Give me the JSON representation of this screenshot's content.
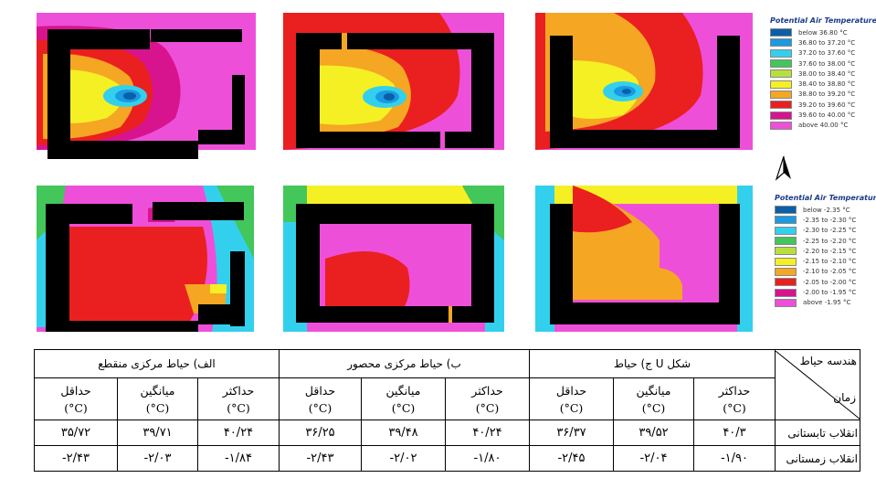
{
  "maps": {
    "summer": [
      {
        "name": "a"
      },
      {
        "name": "b"
      },
      {
        "name": "c"
      }
    ],
    "winter": [
      {
        "name": "a"
      },
      {
        "name": "b"
      },
      {
        "name": "c"
      }
    ]
  },
  "legend_summer": {
    "title": "Potential Air Temperature",
    "items": [
      {
        "label": "below 36.80 °C",
        "color": "#0a5fa8"
      },
      {
        "label": "36.80 to 37.20 °C",
        "color": "#1a9ae0"
      },
      {
        "label": "37.20 to 37.60 °C",
        "color": "#33d0ee"
      },
      {
        "label": "37.60 to 38.00 °C",
        "color": "#43c65a"
      },
      {
        "label": "38.00 to 38.40 °C",
        "color": "#b8e03a"
      },
      {
        "label": "38.40 to 38.80 °C",
        "color": "#f5f024"
      },
      {
        "label": "38.80 to 39.20 °C",
        "color": "#f5a623"
      },
      {
        "label": "39.20 to 39.60 °C",
        "color": "#ea1f1f"
      },
      {
        "label": "39.60 to 40.00 °C",
        "color": "#d8138e"
      },
      {
        "label": "above 40.00 °C",
        "color": "#ee4fd9"
      }
    ]
  },
  "legend_winter": {
    "title": "Potential Air Temperature",
    "items": [
      {
        "label": "below -2.35 °C",
        "color": "#0a5fa8"
      },
      {
        "label": "-2.35 to -2.30 °C",
        "color": "#1a9ae0"
      },
      {
        "label": "-2.30 to -2.25 °C",
        "color": "#33d0ee"
      },
      {
        "label": "-2.25 to -2.20 °C",
        "color": "#43c65a"
      },
      {
        "label": "-2.20 to -2.15 °C",
        "color": "#b8e03a"
      },
      {
        "label": "-2.15 to -2.10 °C",
        "color": "#f5f024"
      },
      {
        "label": "-2.10 to -2.05 °C",
        "color": "#f5a623"
      },
      {
        "label": "-2.05 to -2.00 °C",
        "color": "#ea1f1f"
      },
      {
        "label": "-2.00 to -1.95 °C",
        "color": "#d8138e"
      },
      {
        "label": "above -1.95 °C",
        "color": "#ee4fd9"
      }
    ]
  },
  "table": {
    "header_top": "هندسه حیاط",
    "header_bottom": "زمان",
    "groups": [
      {
        "label": "ج) حیاط U شکل"
      },
      {
        "label": "ب) حیاط مرکزی محصور"
      },
      {
        "label": "الف) حیاط مرکزی منقطع"
      }
    ],
    "sub_labels": [
      "حداکثر",
      "میانگین",
      "حداقل"
    ],
    "unit": "(°C)",
    "rows": [
      {
        "label": "انقلاب تابستانی",
        "cells": [
          "۳۵/۷۲",
          "۳۹/۷۱",
          "۴۰/۲۴",
          "۳۶/۲۵",
          "۳۹/۴۸",
          "۴۰/۲۴",
          "۳۶/۳۷",
          "۳۹/۵۲",
          "۴۰/۳"
        ]
      },
      {
        "label": "انقلاب زمستانی",
        "cells": [
          "-۲/۴۳",
          "-۲/۰۳",
          "-۱/۸۴",
          "-۲/۴۳",
          "-۲/۰۲",
          "-۱/۸۰",
          "-۲/۴۵",
          "-۲/۰۴",
          "-۱/۹۰"
        ]
      }
    ]
  }
}
